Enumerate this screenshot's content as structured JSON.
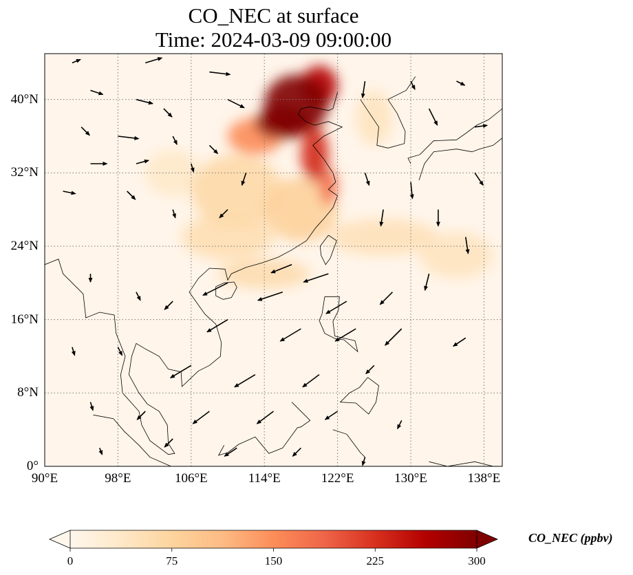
{
  "title": {
    "line1": "CO_NEC at surface",
    "line2": "Time: 2024-03-09 09:00:00"
  },
  "map": {
    "projection": "PlateCarree",
    "lon_range": [
      90,
      140
    ],
    "lat_range": [
      0,
      45
    ],
    "gridlines": "dotted",
    "lon_ticks": [
      {
        "value": 90,
        "label": "90°E"
      },
      {
        "value": 98,
        "label": "98°E"
      },
      {
        "value": 106,
        "label": "106°E"
      },
      {
        "value": 114,
        "label": "114°E"
      },
      {
        "value": 122,
        "label": "122°E"
      },
      {
        "value": 130,
        "label": "130°E"
      },
      {
        "value": 138,
        "label": "138°E"
      }
    ],
    "lat_ticks": [
      {
        "value": 0,
        "label": "0°"
      },
      {
        "value": 8,
        "label": "8°N"
      },
      {
        "value": 16,
        "label": "16°N"
      },
      {
        "value": 24,
        "label": "24°N"
      },
      {
        "value": 32,
        "label": "32°N"
      },
      {
        "value": 40,
        "label": "40°N"
      }
    ],
    "background_color": "#fff5ea"
  },
  "field": {
    "variable": "CO_NEC",
    "units": "ppbv",
    "plumes": [
      {
        "lon": 117.5,
        "lat": 39.5,
        "rx": 3.5,
        "ry": 3.2,
        "value": 300
      },
      {
        "lon": 116.0,
        "lat": 37.5,
        "rx": 3.0,
        "ry": 1.8,
        "value": 300
      },
      {
        "lon": 120.0,
        "lat": 41.5,
        "rx": 2.0,
        "ry": 2.2,
        "value": 260
      },
      {
        "lon": 119.5,
        "lat": 34.0,
        "rx": 1.5,
        "ry": 3.0,
        "value": 230
      },
      {
        "lon": 121.0,
        "lat": 30.5,
        "rx": 1.0,
        "ry": 2.0,
        "value": 180
      },
      {
        "lon": 113.0,
        "lat": 36.0,
        "rx": 3.0,
        "ry": 2.0,
        "value": 150
      },
      {
        "lon": 118.0,
        "lat": 28.0,
        "rx": 4.0,
        "ry": 3.5,
        "value": 80
      },
      {
        "lon": 111.0,
        "lat": 30.0,
        "rx": 5.0,
        "ry": 4.0,
        "value": 65
      },
      {
        "lon": 110.0,
        "lat": 25.0,
        "rx": 5.0,
        "ry": 2.5,
        "value": 55
      },
      {
        "lon": 127.0,
        "lat": 25.0,
        "rx": 6.0,
        "ry": 2.0,
        "value": 50
      },
      {
        "lon": 114.0,
        "lat": 21.0,
        "rx": 5.0,
        "ry": 1.6,
        "value": 60
      },
      {
        "lon": 135.0,
        "lat": 23.0,
        "rx": 4.0,
        "ry": 2.5,
        "value": 45
      },
      {
        "lon": 126.0,
        "lat": 38.0,
        "rx": 2.0,
        "ry": 3.0,
        "value": 45
      },
      {
        "lon": 104.0,
        "lat": 32.0,
        "rx": 3.0,
        "ry": 2.5,
        "value": 35
      }
    ]
  },
  "wind_vectors": [
    {
      "lon": 93,
      "lat": 44,
      "u": 1,
      "v": 0.4
    },
    {
      "lon": 101,
      "lat": 44,
      "u": 2,
      "v": 0.6
    },
    {
      "lon": 108,
      "lat": 43,
      "u": 2.5,
      "v": -0.3
    },
    {
      "lon": 95,
      "lat": 41,
      "u": 1.5,
      "v": -0.5
    },
    {
      "lon": 100,
      "lat": 40,
      "u": 2,
      "v": -0.5
    },
    {
      "lon": 103,
      "lat": 39,
      "u": 1,
      "v": -1
    },
    {
      "lon": 110,
      "lat": 40,
      "u": 2,
      "v": -1
    },
    {
      "lon": 125,
      "lat": 42,
      "u": -0.3,
      "v": -2
    },
    {
      "lon": 130,
      "lat": 42,
      "u": 0.5,
      "v": -1
    },
    {
      "lon": 135,
      "lat": 42,
      "u": 1,
      "v": -0.5
    },
    {
      "lon": 132,
      "lat": 39,
      "u": 1,
      "v": -2
    },
    {
      "lon": 137,
      "lat": 37,
      "u": 1.5,
      "v": 0.2
    },
    {
      "lon": 94,
      "lat": 37,
      "u": 1,
      "v": -1
    },
    {
      "lon": 98,
      "lat": 36,
      "u": 2.5,
      "v": -0.3
    },
    {
      "lon": 104,
      "lat": 36,
      "u": 0.5,
      "v": -1
    },
    {
      "lon": 108,
      "lat": 35,
      "u": 1,
      "v": -1
    },
    {
      "lon": 95,
      "lat": 33,
      "u": 2,
      "v": 0
    },
    {
      "lon": 100,
      "lat": 33,
      "u": 1.5,
      "v": 0.4
    },
    {
      "lon": 106,
      "lat": 33,
      "u": 0.3,
      "v": -1
    },
    {
      "lon": 112,
      "lat": 32,
      "u": -0.5,
      "v": -1.5
    },
    {
      "lon": 125,
      "lat": 32,
      "u": 0.5,
      "v": -1.5
    },
    {
      "lon": 130,
      "lat": 31,
      "u": 0.2,
      "v": -2
    },
    {
      "lon": 137,
      "lat": 32,
      "u": 1,
      "v": -1.5
    },
    {
      "lon": 92,
      "lat": 30,
      "u": 1.5,
      "v": -0.3
    },
    {
      "lon": 99,
      "lat": 30,
      "u": 1,
      "v": -1
    },
    {
      "lon": 104,
      "lat": 28,
      "u": 0.3,
      "v": -1
    },
    {
      "lon": 110,
      "lat": 28,
      "u": -1,
      "v": -1
    },
    {
      "lon": 127,
      "lat": 28,
      "u": -0.3,
      "v": -2
    },
    {
      "lon": 133,
      "lat": 28,
      "u": 0,
      "v": -2
    },
    {
      "lon": 136,
      "lat": 25,
      "u": 0.3,
      "v": -2
    },
    {
      "lon": 117,
      "lat": 22,
      "u": -2.5,
      "v": -1
    },
    {
      "lon": 121,
      "lat": 21,
      "u": -3,
      "v": -1
    },
    {
      "lon": 110,
      "lat": 20,
      "u": -3,
      "v": -1.5
    },
    {
      "lon": 116,
      "lat": 19,
      "u": -3,
      "v": -1
    },
    {
      "lon": 123,
      "lat": 18,
      "u": -2.5,
      "v": -1.5
    },
    {
      "lon": 128,
      "lat": 19,
      "u": -1.5,
      "v": -1.5
    },
    {
      "lon": 132,
      "lat": 21,
      "u": -0.5,
      "v": -2
    },
    {
      "lon": 95,
      "lat": 21,
      "u": 0,
      "v": -1
    },
    {
      "lon": 100,
      "lat": 19,
      "u": 0.5,
      "v": -1
    },
    {
      "lon": 104,
      "lat": 18,
      "u": -1,
      "v": -1
    },
    {
      "lon": 110,
      "lat": 16,
      "u": -2.5,
      "v": -1.5
    },
    {
      "lon": 118,
      "lat": 15,
      "u": -2.5,
      "v": -1.5
    },
    {
      "lon": 124,
      "lat": 15,
      "u": -2.5,
      "v": -1.5
    },
    {
      "lon": 129,
      "lat": 15,
      "u": -2,
      "v": -2
    },
    {
      "lon": 136,
      "lat": 14,
      "u": -1.5,
      "v": -1
    },
    {
      "lon": 93,
      "lat": 13,
      "u": 0.3,
      "v": -1
    },
    {
      "lon": 98,
      "lat": 13,
      "u": 0.5,
      "v": -1
    },
    {
      "lon": 106,
      "lat": 11,
      "u": -2.5,
      "v": -1.5
    },
    {
      "lon": 113,
      "lat": 10,
      "u": -2.5,
      "v": -1.5
    },
    {
      "lon": 120,
      "lat": 10,
      "u": -2,
      "v": -1.5
    },
    {
      "lon": 126,
      "lat": 11,
      "u": -1,
      "v": -1
    },
    {
      "lon": 95,
      "lat": 7,
      "u": 0.3,
      "v": -1
    },
    {
      "lon": 101,
      "lat": 6,
      "u": -1,
      "v": -1
    },
    {
      "lon": 108,
      "lat": 6,
      "u": -2,
      "v": -1.5
    },
    {
      "lon": 115,
      "lat": 6,
      "u": -2,
      "v": -1.5
    },
    {
      "lon": 122,
      "lat": 6,
      "u": -1.5,
      "v": -1
    },
    {
      "lon": 129,
      "lat": 5,
      "u": -0.5,
      "v": -1
    },
    {
      "lon": 96,
      "lat": 2,
      "u": 0.3,
      "v": -0.8
    },
    {
      "lon": 104,
      "lat": 3,
      "u": -1,
      "v": -1
    },
    {
      "lon": 111,
      "lat": 2,
      "u": -1.5,
      "v": -1
    },
    {
      "lon": 118,
      "lat": 2,
      "u": -1,
      "v": -1
    },
    {
      "lon": 125,
      "lat": 1,
      "u": -0.3,
      "v": -1
    }
  ],
  "colorbar": {
    "label": "CO_NEC (ppbv)",
    "min": 0,
    "max": 300,
    "extend": "both",
    "ticks": [
      {
        "value": 0,
        "label": "0"
      },
      {
        "value": 75,
        "label": "75"
      },
      {
        "value": 150,
        "label": "150"
      },
      {
        "value": 225,
        "label": "225"
      },
      {
        "value": 300,
        "label": "300"
      }
    ],
    "colormap": "OrRd",
    "stops": [
      "#fff7ec",
      "#fee8c8",
      "#fdd49e",
      "#fdbb84",
      "#fc8d59",
      "#ef6548",
      "#d7301f",
      "#b30000",
      "#7f0000"
    ]
  }
}
